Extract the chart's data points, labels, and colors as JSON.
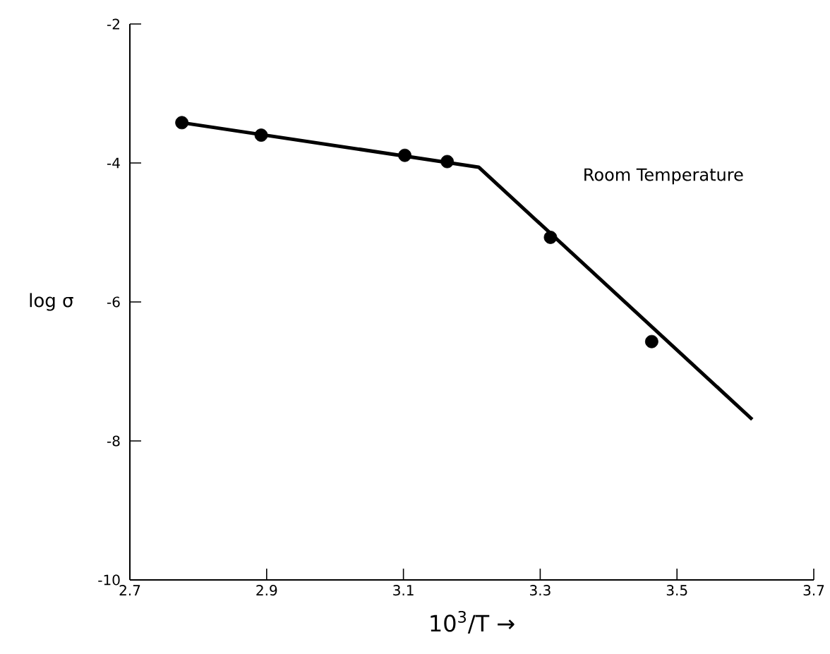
{
  "chart_data": {
    "type": "scatter",
    "xlabel": "10$^{3}$/T →",
    "ylabel": "log σ",
    "annotations": [
      "Room Temperature"
    ],
    "xlim": [
      2.7,
      3.7
    ],
    "ylim": [
      -10,
      -2
    ],
    "xticks": [
      2.7,
      2.9,
      3.1,
      3.3,
      3.5,
      3.7
    ],
    "yticks": [
      -10,
      -8,
      -6,
      -4,
      -2
    ],
    "grid": false,
    "series": [
      {
        "marker": "circle",
        "color": "#000000",
        "x": [
          2.776,
          2.892,
          3.102,
          3.164,
          3.315,
          3.463
        ],
        "values": [
          -3.42,
          -3.6,
          -3.89,
          -3.98,
          -5.07,
          -6.57
        ]
      },
      {
        "type": "line",
        "marker": "none",
        "color": "#000000",
        "x": [
          2.776,
          3.21,
          3.61
        ],
        "values": [
          -3.42,
          -4.06,
          -7.69
        ]
      }
    ]
  }
}
